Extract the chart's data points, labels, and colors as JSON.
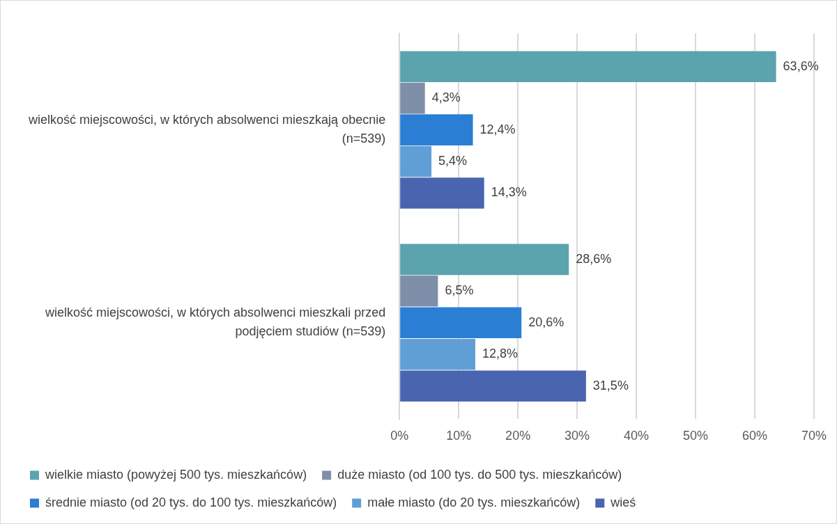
{
  "chart_data": {
    "type": "bar",
    "orientation": "horizontal",
    "categories": [
      "wielkość miejscowości, w których absolwenci mieszkają obecnie (n=539)",
      "wielkość miejscowości, w których absolwenci mieszkali przed podjęciem studiów (n=539)"
    ],
    "series": [
      {
        "name": "wielkie miasto (powyżej 500 tys. mieszkańców)",
        "color": "#5ba3ad",
        "values": [
          63.6,
          28.6
        ],
        "value_labels": [
          "63,6%",
          "28,6%"
        ]
      },
      {
        "name": "duże miasto (od 100 tys. do 500 tys. mieszkańców)",
        "color": "#7f8fa9",
        "values": [
          4.3,
          6.5
        ],
        "value_labels": [
          "4,3%",
          "6,5%"
        ]
      },
      {
        "name": "średnie miasto (od 20 tys. do 100 tys. mieszkańców)",
        "color": "#2a7fd4",
        "values": [
          12.4,
          20.6
        ],
        "value_labels": [
          "12,4%",
          "20,6%"
        ]
      },
      {
        "name": "małe miasto (do 20 tys. mieszkańców)",
        "color": "#5f9fd6",
        "values": [
          5.4,
          12.8
        ],
        "value_labels": [
          "5,4%",
          "12,8%"
        ]
      },
      {
        "name": "wieś",
        "color": "#4a65b0",
        "values": [
          14.3,
          31.5
        ],
        "value_labels": [
          "14,3%",
          "31,5%"
        ]
      }
    ],
    "xlim": [
      0,
      70
    ],
    "xticks": [
      {
        "value": 0,
        "label": "0%"
      },
      {
        "value": 10,
        "label": "10%"
      },
      {
        "value": 20,
        "label": "20%"
      },
      {
        "value": 30,
        "label": "30%"
      },
      {
        "value": 40,
        "label": "40%"
      },
      {
        "value": 50,
        "label": "50%"
      },
      {
        "value": 60,
        "label": "60%"
      },
      {
        "value": 70,
        "label": "70%"
      }
    ],
    "grid": "x",
    "legend": "bottom"
  }
}
